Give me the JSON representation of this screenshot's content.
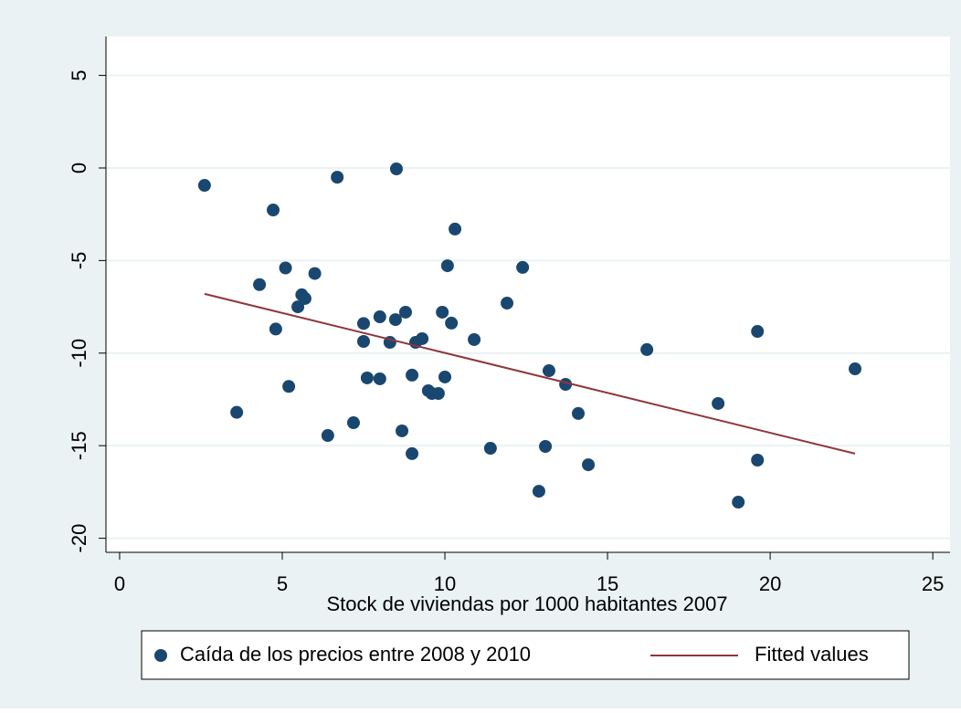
{
  "chart_data": {
    "type": "scatter",
    "xlabel": "Stock de viviendas por 1000 habitantes 2007",
    "xlim": [
      -0.42,
      25.53
    ],
    "ylim": [
      -20.76,
      7.1
    ],
    "xticks": [
      0,
      5,
      10,
      15,
      20,
      25
    ],
    "yticks": [
      -20,
      -15,
      -10,
      -5,
      0,
      5
    ],
    "grid": true,
    "legend": "bottom",
    "series": [
      {
        "name": "Caída de los precios entre 2008 y 2010",
        "color": "#1a476f",
        "type": "scatter",
        "x": [
          2.61,
          3.6,
          4.3,
          4.72,
          4.8,
          5.1,
          5.2,
          5.48,
          5.6,
          5.7,
          6.0,
          6.4,
          6.69,
          7.19,
          7.5,
          7.5,
          7.61,
          8.0,
          8.0,
          8.31,
          8.48,
          8.51,
          8.68,
          8.79,
          8.99,
          8.99,
          9.1,
          9.3,
          9.49,
          9.6,
          9.8,
          9.92,
          10.0,
          10.08,
          10.2,
          10.31,
          10.9,
          11.4,
          11.91,
          12.39,
          12.89,
          13.09,
          13.2,
          13.71,
          14.1,
          14.41,
          16.21,
          18.4,
          19.02,
          19.61,
          19.61,
          22.61
        ],
        "values": [
          -0.94,
          -13.2,
          -6.3,
          -2.27,
          -8.7,
          -5.4,
          -11.8,
          -7.5,
          -6.85,
          -7.05,
          -5.7,
          -14.45,
          -0.5,
          -13.76,
          -8.4,
          -9.37,
          -11.34,
          -8.04,
          -11.39,
          -9.42,
          -8.19,
          -0.05,
          -14.2,
          -7.79,
          -11.19,
          -15.43,
          -9.42,
          -9.22,
          -12.03,
          -12.18,
          -12.18,
          -7.79,
          -11.29,
          -5.28,
          -8.38,
          -3.3,
          -9.27,
          -15.14,
          -7.3,
          -5.37,
          -17.46,
          -15.04,
          -10.95,
          -11.69,
          -13.26,
          -16.03,
          -9.81,
          -12.72,
          -18.05,
          -8.83,
          -15.78,
          -10.85
        ]
      },
      {
        "name": "Fitted values",
        "color": "#90353b",
        "type": "line",
        "x": [
          2.61,
          22.61
        ],
        "values": [
          -6.8,
          -15.43
        ]
      }
    ]
  }
}
